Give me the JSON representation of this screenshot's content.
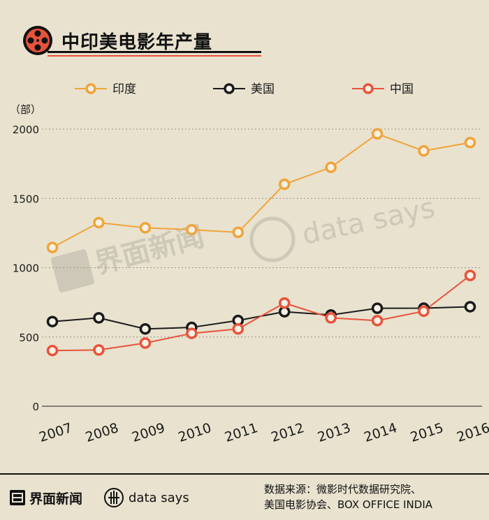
{
  "header": {
    "title": "中印美电影年产量",
    "icon": "film-reel-icon"
  },
  "chart_data": {
    "type": "line",
    "title": "中印美电影年产量",
    "unit_label": "（部）",
    "categories": [
      "2007",
      "2008",
      "2009",
      "2010",
      "2011",
      "2012",
      "2013",
      "2014",
      "2015",
      "2016"
    ],
    "ylim": [
      0,
      2000
    ],
    "yticks": [
      0,
      500,
      1000,
      1500,
      2000
    ],
    "grid": true,
    "legend_position": "top",
    "series": [
      {
        "name": "印度",
        "color": "#f0a43a",
        "values": [
          1146,
          1325,
          1288,
          1274,
          1255,
          1602,
          1724,
          1966,
          1843,
          1903
        ]
      },
      {
        "name": "美国",
        "color": "#1a1a1a",
        "values": [
          611,
          638,
          558,
          569,
          619,
          682,
          659,
          707,
          708,
          718
        ]
      },
      {
        "name": "中国",
        "color": "#e8533c",
        "values": [
          402,
          406,
          456,
          526,
          558,
          745,
          638,
          618,
          686,
          944
        ]
      }
    ]
  },
  "watermark": {
    "brand": "界面新闻",
    "data_brand": "data says"
  },
  "footer": {
    "brand": "界面新闻",
    "data_brand": "data says",
    "source_line1": "数据来源：微影时代数据研究院、",
    "source_line2": "美国电影协会、BOX OFFICE INDIA"
  }
}
